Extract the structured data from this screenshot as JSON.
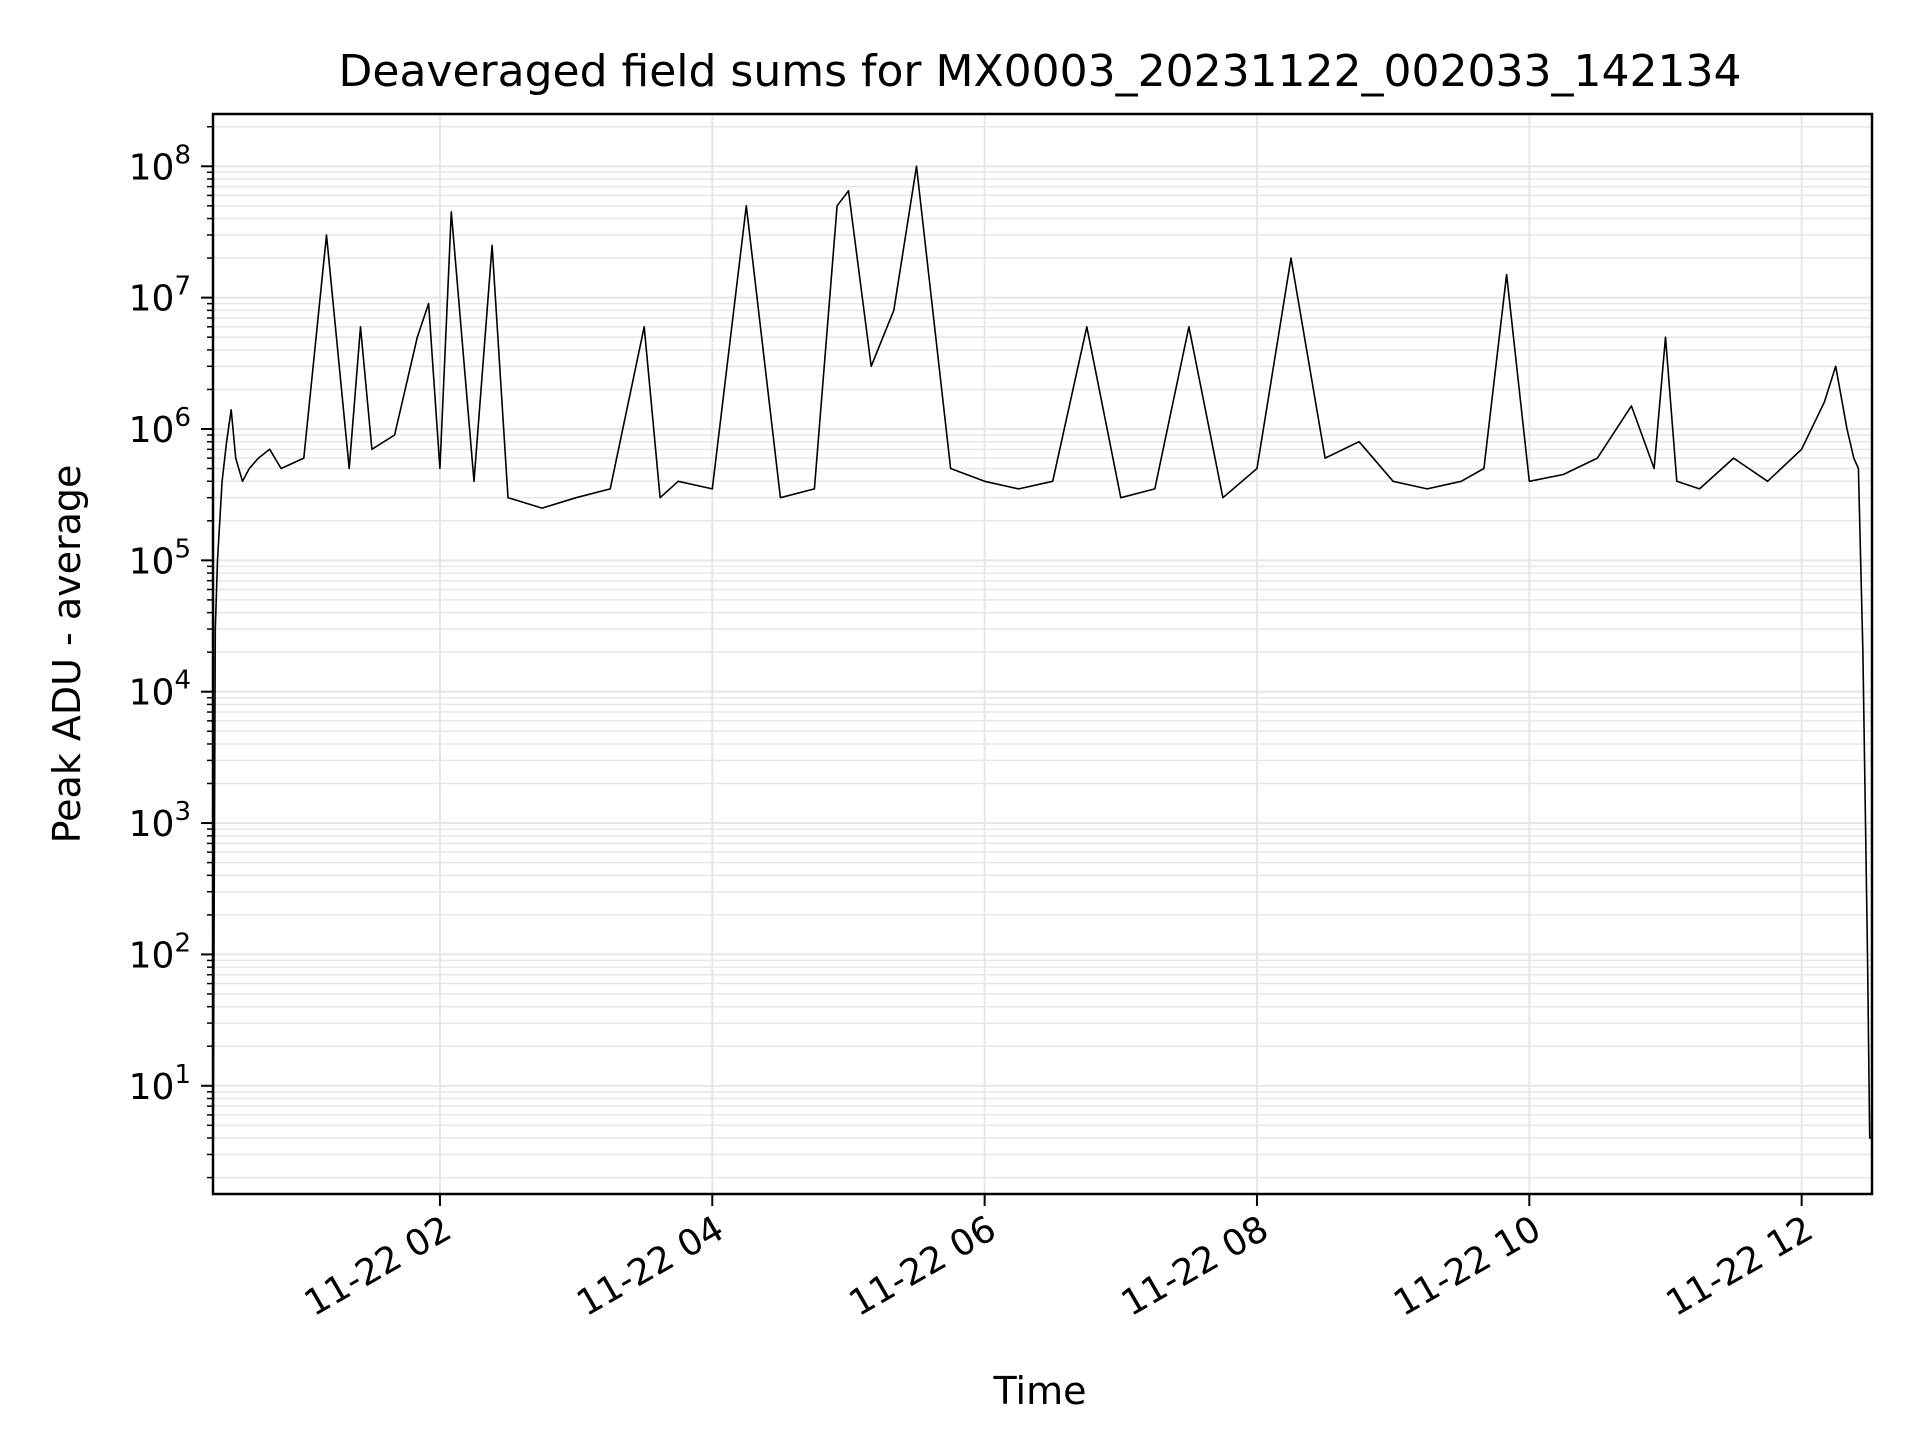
{
  "chart_data": {
    "type": "line",
    "title": "Deaveraged field sums for MX0003_20231122_002033_142134",
    "xlabel": "Time",
    "ylabel": "Peak ADU - average",
    "y_scale": "log",
    "grid": true,
    "legend": "none",
    "series_color": "#000000",
    "grid_color": "#e6e6e6",
    "x_range": [
      "2023-11-22 00:20",
      "2023-11-22 12:31"
    ],
    "ylim": [
      1.5,
      250000000.0
    ],
    "x_ticks": [
      {
        "time": "2023-11-22 02:00",
        "label": "11-22 02"
      },
      {
        "time": "2023-11-22 04:00",
        "label": "11-22 04"
      },
      {
        "time": "2023-11-22 06:00",
        "label": "11-22 06"
      },
      {
        "time": "2023-11-22 08:00",
        "label": "11-22 08"
      },
      {
        "time": "2023-11-22 10:00",
        "label": "11-22 10"
      },
      {
        "time": "2023-11-22 12:00",
        "label": "11-22 12"
      }
    ],
    "y_ticks": [
      {
        "value": 10,
        "base": "10",
        "exp": "1"
      },
      {
        "value": 100,
        "base": "10",
        "exp": "2"
      },
      {
        "value": 1000,
        "base": "10",
        "exp": "3"
      },
      {
        "value": 10000,
        "base": "10",
        "exp": "4"
      },
      {
        "value": 100000,
        "base": "10",
        "exp": "5"
      },
      {
        "value": 1000000,
        "base": "10",
        "exp": "6"
      },
      {
        "value": 10000000,
        "base": "10",
        "exp": "7"
      },
      {
        "value": 100000000,
        "base": "10",
        "exp": "8"
      }
    ],
    "series": [
      {
        "x": [
          "2023-11-22 00:20",
          "2023-11-22 00:21",
          "2023-11-22 00:22",
          "2023-11-22 00:24",
          "2023-11-22 00:26",
          "2023-11-22 00:28",
          "2023-11-22 00:30",
          "2023-11-22 00:33",
          "2023-11-22 00:36",
          "2023-11-22 00:40",
          "2023-11-22 00:45",
          "2023-11-22 00:50",
          "2023-11-22 01:00",
          "2023-11-22 01:10",
          "2023-11-22 01:20",
          "2023-11-22 01:25",
          "2023-11-22 01:30",
          "2023-11-22 01:40",
          "2023-11-22 01:50",
          "2023-11-22 01:55",
          "2023-11-22 02:00",
          "2023-11-22 02:05",
          "2023-11-22 02:15",
          "2023-11-22 02:23",
          "2023-11-22 02:30",
          "2023-11-22 02:45",
          "2023-11-22 03:00",
          "2023-11-22 03:15",
          "2023-11-22 03:30",
          "2023-11-22 03:37",
          "2023-11-22 03:45",
          "2023-11-22 04:00",
          "2023-11-22 04:15",
          "2023-11-22 04:30",
          "2023-11-22 04:45",
          "2023-11-22 04:55",
          "2023-11-22 05:00",
          "2023-11-22 05:10",
          "2023-11-22 05:20",
          "2023-11-22 05:30",
          "2023-11-22 05:45",
          "2023-11-22 06:00",
          "2023-11-22 06:15",
          "2023-11-22 06:30",
          "2023-11-22 06:45",
          "2023-11-22 07:00",
          "2023-11-22 07:15",
          "2023-11-22 07:30",
          "2023-11-22 07:45",
          "2023-11-22 08:00",
          "2023-11-22 08:15",
          "2023-11-22 08:30",
          "2023-11-22 08:45",
          "2023-11-22 09:00",
          "2023-11-22 09:15",
          "2023-11-22 09:30",
          "2023-11-22 09:40",
          "2023-11-22 09:50",
          "2023-11-22 10:00",
          "2023-11-22 10:15",
          "2023-11-22 10:30",
          "2023-11-22 10:45",
          "2023-11-22 10:55",
          "2023-11-22 11:00",
          "2023-11-22 11:05",
          "2023-11-22 11:15",
          "2023-11-22 11:30",
          "2023-11-22 11:45",
          "2023-11-22 12:00",
          "2023-11-22 12:10",
          "2023-11-22 12:15",
          "2023-11-22 12:20",
          "2023-11-22 12:23",
          "2023-11-22 12:25",
          "2023-11-22 12:27",
          "2023-11-22 12:29",
          "2023-11-22 12:30",
          "2023-11-22 12:31"
        ],
        "y": [
          1.5,
          30000,
          100000,
          400000,
          800000,
          1400000,
          600000,
          400000,
          500000,
          600000,
          700000,
          500000,
          600000,
          30000000,
          500000,
          6000000,
          700000,
          900000,
          5000000,
          9000000,
          500000,
          45000000,
          400000,
          25000000,
          300000,
          250000,
          300000,
          350000,
          6000000,
          300000,
          400000,
          350000,
          50000000,
          300000,
          350000,
          50000000,
          65000000,
          3000000,
          8000000,
          100000000,
          500000,
          400000,
          350000,
          400000,
          6000000,
          300000,
          350000,
          6000000,
          300000,
          500000,
          20000000,
          600000,
          800000,
          400000,
          350000,
          400000,
          500000,
          15000000,
          400000,
          450000,
          600000,
          1500000,
          500000,
          5000000,
          400000,
          350000,
          600000,
          400000,
          700000,
          1600000,
          3000000,
          1000000,
          600000,
          500000,
          20000,
          100,
          4,
          4
        ]
      }
    ]
  }
}
